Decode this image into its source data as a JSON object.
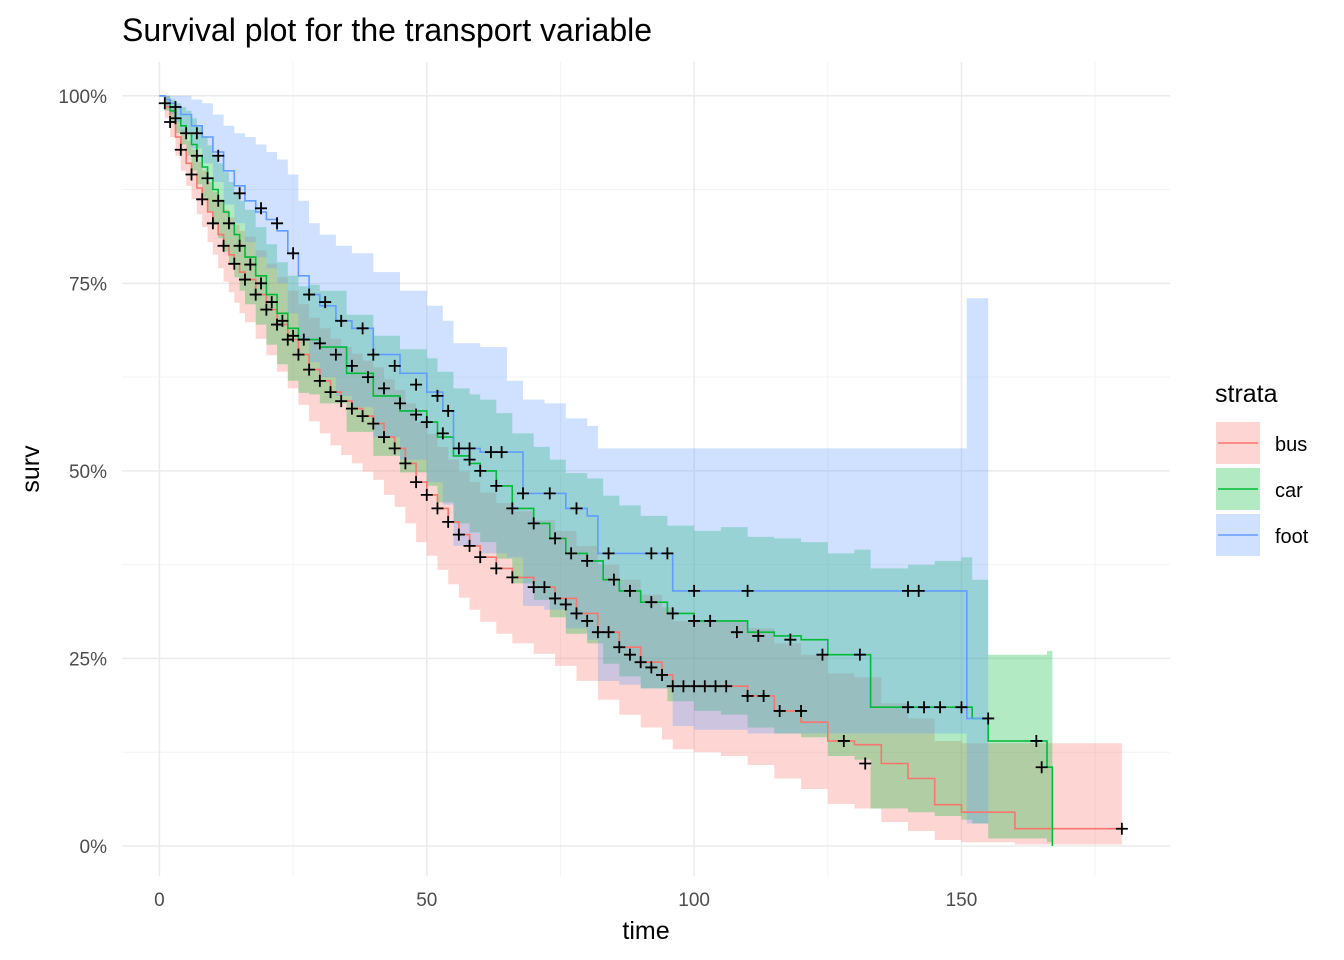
{
  "chart_data": {
    "type": "line",
    "title": "Survival plot for the transport variable",
    "xlabel": "time",
    "ylabel": "surv",
    "xlim": [
      -7,
      189
    ],
    "ylim": [
      -0.04,
      1.045
    ],
    "x_ticks": [
      0,
      50,
      100,
      150
    ],
    "x_tick_labels": [
      "0",
      "50",
      "100",
      "150"
    ],
    "y_ticks": [
      0,
      0.25,
      0.5,
      0.75,
      1.0
    ],
    "y_tick_labels": [
      "0%",
      "25%",
      "50%",
      "75%",
      "100%"
    ],
    "grid": true,
    "legend": {
      "title": "strata",
      "position": "right"
    },
    "series": [
      {
        "name": "bus",
        "color": "#F8766D",
        "fill": "#F8766D",
        "x": [
          0,
          1,
          2,
          3,
          4,
          5,
          6,
          7,
          8,
          9,
          10,
          11,
          12,
          13,
          14,
          15,
          16,
          18,
          20,
          22,
          24,
          26,
          28,
          30,
          32,
          34,
          36,
          38,
          40,
          42,
          44,
          46,
          48,
          50,
          52,
          54,
          56,
          58,
          60,
          63,
          66,
          70,
          74,
          78,
          82,
          86,
          90,
          94,
          96,
          100,
          105,
          110,
          115,
          120,
          125,
          130,
          135,
          140,
          145,
          150,
          155,
          160,
          170,
          180
        ],
        "y": [
          1.0,
          0.985,
          0.965,
          0.945,
          0.928,
          0.91,
          0.895,
          0.877,
          0.862,
          0.845,
          0.83,
          0.815,
          0.8,
          0.788,
          0.776,
          0.765,
          0.755,
          0.735,
          0.715,
          0.695,
          0.675,
          0.655,
          0.635,
          0.62,
          0.605,
          0.593,
          0.583,
          0.573,
          0.563,
          0.545,
          0.53,
          0.51,
          0.485,
          0.468,
          0.45,
          0.432,
          0.415,
          0.4,
          0.385,
          0.37,
          0.358,
          0.345,
          0.33,
          0.31,
          0.285,
          0.265,
          0.245,
          0.228,
          0.213,
          0.213,
          0.213,
          0.2,
          0.18,
          0.165,
          0.14,
          0.135,
          0.11,
          0.09,
          0.055,
          0.045,
          0.045,
          0.023,
          0.023,
          0.023
        ],
        "lower": [
          1.0,
          0.97,
          0.945,
          0.92,
          0.9,
          0.88,
          0.862,
          0.842,
          0.825,
          0.805,
          0.788,
          0.77,
          0.752,
          0.738,
          0.724,
          0.71,
          0.698,
          0.676,
          0.654,
          0.632,
          0.61,
          0.588,
          0.566,
          0.55,
          0.534,
          0.521,
          0.51,
          0.499,
          0.488,
          0.468,
          0.452,
          0.43,
          0.405,
          0.387,
          0.368,
          0.349,
          0.331,
          0.315,
          0.299,
          0.283,
          0.27,
          0.256,
          0.24,
          0.22,
          0.195,
          0.175,
          0.158,
          0.142,
          0.129,
          0.125,
          0.12,
          0.108,
          0.09,
          0.076,
          0.056,
          0.05,
          0.032,
          0.02,
          0.008,
          0.005,
          0.005,
          0.002,
          0.002,
          0.002
        ],
        "upper": [
          1.0,
          1.0,
          0.985,
          0.97,
          0.955,
          0.94,
          0.928,
          0.912,
          0.9,
          0.885,
          0.872,
          0.86,
          0.848,
          0.838,
          0.828,
          0.82,
          0.812,
          0.794,
          0.776,
          0.758,
          0.74,
          0.722,
          0.704,
          0.69,
          0.676,
          0.665,
          0.656,
          0.647,
          0.638,
          0.622,
          0.608,
          0.59,
          0.565,
          0.549,
          0.532,
          0.515,
          0.499,
          0.485,
          0.471,
          0.457,
          0.446,
          0.434,
          0.42,
          0.4,
          0.375,
          0.355,
          0.335,
          0.318,
          0.3,
          0.3,
          0.3,
          0.29,
          0.27,
          0.255,
          0.23,
          0.225,
          0.19,
          0.17,
          0.14,
          0.137,
          0.137,
          0.137,
          0.137,
          0.137
        ],
        "censor_x": [
          2,
          4,
          6,
          8,
          10,
          12,
          14,
          16,
          18,
          20,
          22,
          24,
          26,
          28,
          30,
          32,
          34,
          36,
          38,
          40,
          42,
          44,
          46,
          48,
          50,
          52,
          54,
          56,
          58,
          60,
          63,
          66,
          70,
          72,
          74,
          76,
          78,
          80,
          82,
          84,
          86,
          88,
          90,
          92,
          94,
          96,
          98,
          100,
          102,
          104,
          106,
          110,
          113,
          116,
          120,
          128,
          132,
          180
        ],
        "censor_y": [
          0.965,
          0.928,
          0.895,
          0.862,
          0.83,
          0.8,
          0.776,
          0.755,
          0.735,
          0.715,
          0.695,
          0.675,
          0.655,
          0.635,
          0.62,
          0.605,
          0.593,
          0.583,
          0.573,
          0.563,
          0.545,
          0.53,
          0.51,
          0.485,
          0.468,
          0.45,
          0.432,
          0.415,
          0.4,
          0.385,
          0.37,
          0.358,
          0.345,
          0.345,
          0.33,
          0.322,
          0.31,
          0.3,
          0.285,
          0.285,
          0.265,
          0.255,
          0.245,
          0.238,
          0.228,
          0.213,
          0.213,
          0.213,
          0.213,
          0.213,
          0.213,
          0.2,
          0.2,
          0.18,
          0.18,
          0.14,
          0.11,
          0.023
        ]
      },
      {
        "name": "car",
        "color": "#00BA38",
        "fill": "#00BA38",
        "x": [
          0,
          1,
          2,
          3,
          4,
          5,
          6,
          7,
          8,
          9,
          10,
          11,
          12,
          13,
          14,
          15,
          16,
          18,
          20,
          22,
          24,
          26,
          28,
          30,
          35,
          40,
          45,
          50,
          52,
          55,
          58,
          60,
          63,
          66,
          70,
          73,
          76,
          80,
          83,
          86,
          90,
          95,
          100,
          105,
          110,
          115,
          120,
          125,
          130,
          133,
          140,
          145,
          150,
          152,
          155,
          160,
          165,
          166,
          167
        ],
        "y": [
          1.0,
          0.99,
          0.98,
          0.97,
          0.96,
          0.95,
          0.935,
          0.92,
          0.905,
          0.89,
          0.875,
          0.86,
          0.845,
          0.83,
          0.815,
          0.8,
          0.785,
          0.76,
          0.735,
          0.71,
          0.69,
          0.675,
          0.675,
          0.665,
          0.63,
          0.6,
          0.58,
          0.565,
          0.545,
          0.52,
          0.51,
          0.5,
          0.48,
          0.45,
          0.43,
          0.41,
          0.39,
          0.38,
          0.355,
          0.34,
          0.325,
          0.31,
          0.3,
          0.3,
          0.285,
          0.28,
          0.275,
          0.255,
          0.255,
          0.185,
          0.185,
          0.185,
          0.185,
          0.17,
          0.14,
          0.14,
          0.14,
          0.105,
          0.0
        ],
        "lower": [
          1.0,
          0.98,
          0.965,
          0.95,
          0.935,
          0.92,
          0.9,
          0.882,
          0.864,
          0.846,
          0.828,
          0.81,
          0.792,
          0.775,
          0.758,
          0.74,
          0.722,
          0.695,
          0.668,
          0.642,
          0.62,
          0.604,
          0.602,
          0.59,
          0.552,
          0.52,
          0.498,
          0.48,
          0.458,
          0.43,
          0.418,
          0.405,
          0.383,
          0.35,
          0.328,
          0.305,
          0.283,
          0.27,
          0.243,
          0.226,
          0.21,
          0.193,
          0.18,
          0.175,
          0.158,
          0.15,
          0.145,
          0.12,
          0.115,
          0.05,
          0.045,
          0.04,
          0.035,
          0.03,
          0.01,
          0.01,
          0.01,
          0.005,
          0.0
        ],
        "upper": [
          1.0,
          1.0,
          0.995,
          0.99,
          0.985,
          0.98,
          0.97,
          0.958,
          0.946,
          0.934,
          0.922,
          0.91,
          0.898,
          0.885,
          0.872,
          0.86,
          0.848,
          0.825,
          0.802,
          0.778,
          0.76,
          0.746,
          0.748,
          0.74,
          0.708,
          0.68,
          0.662,
          0.65,
          0.632,
          0.61,
          0.602,
          0.595,
          0.577,
          0.55,
          0.532,
          0.515,
          0.497,
          0.49,
          0.467,
          0.454,
          0.44,
          0.427,
          0.42,
          0.425,
          0.412,
          0.41,
          0.405,
          0.39,
          0.395,
          0.37,
          0.375,
          0.38,
          0.385,
          0.355,
          0.255,
          0.255,
          0.255,
          0.26,
          0.26
        ],
        "censor_x": [
          1,
          3,
          5,
          7,
          9,
          11,
          13,
          15,
          17,
          19,
          21,
          23,
          25,
          27,
          30,
          33,
          36,
          39,
          42,
          45,
          48,
          50,
          53,
          56,
          58,
          60,
          63,
          66,
          70,
          74,
          77,
          80,
          85,
          88,
          92,
          96,
          100,
          103,
          108,
          112,
          118,
          124,
          131,
          140,
          143,
          146,
          150,
          155,
          164,
          165
        ],
        "censor_y": [
          0.99,
          0.97,
          0.95,
          0.92,
          0.89,
          0.86,
          0.83,
          0.8,
          0.775,
          0.75,
          0.725,
          0.7,
          0.68,
          0.675,
          0.67,
          0.655,
          0.64,
          0.625,
          0.61,
          0.59,
          0.575,
          0.565,
          0.55,
          0.53,
          0.515,
          0.5,
          0.48,
          0.45,
          0.43,
          0.41,
          0.39,
          0.38,
          0.355,
          0.34,
          0.325,
          0.31,
          0.3,
          0.3,
          0.285,
          0.28,
          0.275,
          0.255,
          0.255,
          0.185,
          0.185,
          0.185,
          0.185,
          0.17,
          0.14,
          0.105
        ]
      },
      {
        "name": "foot",
        "color": "#619CFF",
        "fill": "#619CFF",
        "x": [
          0,
          1,
          2,
          3,
          4,
          6,
          8,
          10,
          12,
          14,
          16,
          18,
          20,
          22,
          24,
          26,
          28,
          30,
          33,
          36,
          40,
          45,
          50,
          53,
          55,
          60,
          65,
          68,
          72,
          76,
          80,
          82,
          86,
          90,
          96,
          100,
          110,
          120,
          130,
          140,
          145,
          150,
          151,
          155
        ],
        "y": [
          1.0,
          0.995,
          0.99,
          0.985,
          0.975,
          0.96,
          0.945,
          0.925,
          0.9,
          0.88,
          0.86,
          0.845,
          0.835,
          0.82,
          0.79,
          0.76,
          0.735,
          0.72,
          0.7,
          0.69,
          0.655,
          0.63,
          0.605,
          0.58,
          0.53,
          0.525,
          0.525,
          0.47,
          0.47,
          0.45,
          0.44,
          0.39,
          0.39,
          0.39,
          0.34,
          0.34,
          0.34,
          0.34,
          0.34,
          0.34,
          0.34,
          0.34,
          0.17,
          0.17
        ],
        "lower": [
          1.0,
          0.985,
          0.975,
          0.965,
          0.95,
          0.93,
          0.91,
          0.885,
          0.855,
          0.83,
          0.805,
          0.785,
          0.77,
          0.75,
          0.71,
          0.675,
          0.645,
          0.625,
          0.6,
          0.585,
          0.545,
          0.515,
          0.485,
          0.455,
          0.4,
          0.39,
          0.385,
          0.32,
          0.315,
          0.29,
          0.275,
          0.22,
          0.215,
          0.21,
          0.16,
          0.155,
          0.15,
          0.15,
          0.15,
          0.15,
          0.15,
          0.15,
          0.03,
          0.03
        ],
        "upper": [
          1.0,
          1.0,
          1.0,
          1.0,
          1.0,
          0.995,
          0.99,
          0.975,
          0.96,
          0.95,
          0.945,
          0.935,
          0.925,
          0.915,
          0.895,
          0.86,
          0.83,
          0.815,
          0.8,
          0.79,
          0.765,
          0.74,
          0.72,
          0.7,
          0.67,
          0.665,
          0.62,
          0.595,
          0.59,
          0.57,
          0.56,
          0.53,
          0.53,
          0.53,
          0.53,
          0.53,
          0.53,
          0.53,
          0.53,
          0.53,
          0.53,
          0.53,
          0.73,
          0.73
        ],
        "censor_x": [
          3,
          7,
          11,
          15,
          19,
          22,
          25,
          28,
          31,
          34,
          38,
          40,
          44,
          48,
          52,
          54,
          58,
          62,
          64,
          68,
          73,
          78,
          84,
          92,
          95,
          100,
          110,
          140,
          142
        ],
        "censor_y": [
          0.985,
          0.95,
          0.92,
          0.87,
          0.85,
          0.83,
          0.79,
          0.735,
          0.725,
          0.7,
          0.69,
          0.655,
          0.64,
          0.615,
          0.6,
          0.58,
          0.53,
          0.525,
          0.525,
          0.47,
          0.47,
          0.45,
          0.39,
          0.39,
          0.39,
          0.34,
          0.34,
          0.34,
          0.34
        ]
      }
    ]
  }
}
